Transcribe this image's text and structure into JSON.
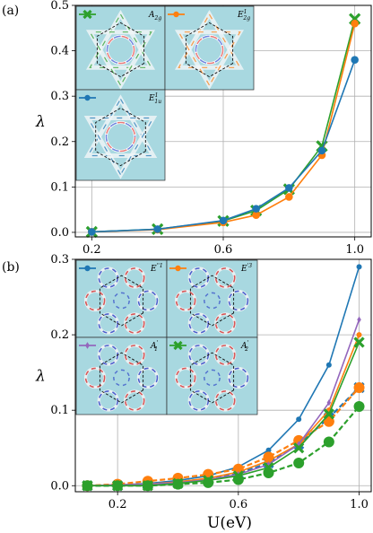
{
  "panel_labels": [
    "(a)",
    "(b)"
  ],
  "xlabel": "U(eV)",
  "chart_data": [
    {
      "type": "line",
      "panel": "(a)",
      "ylabel": "λ",
      "xlim": [
        0.15,
        1.05
      ],
      "ylim": [
        -0.01,
        0.5
      ],
      "xticks": [
        "0.2",
        "0.6",
        "1.0"
      ],
      "xtick_values": [
        0.2,
        0.6,
        1.0
      ],
      "yticks": [
        "0.0",
        "0.1",
        "0.2",
        "0.3",
        "0.4",
        "0.5"
      ],
      "ytick_values": [
        0.0,
        0.1,
        0.2,
        0.3,
        0.4,
        0.5
      ],
      "grid": true,
      "series": [
        {
          "name": "A2g",
          "label_main": "A",
          "label_sub": "2g",
          "label_sup": "",
          "color": "#2ca02c",
          "marker": "x",
          "dashed": false,
          "x": [
            0.2,
            0.4,
            0.6,
            0.7,
            0.8,
            0.9,
            1.0
          ],
          "y": [
            0.001,
            0.007,
            0.025,
            0.048,
            0.095,
            0.19,
            0.47
          ]
        },
        {
          "name": "E12g",
          "label_main": "E",
          "label_sub": "2g",
          "label_sup": "1",
          "color": "#ff7f0e",
          "marker": "o",
          "dashed": false,
          "x": [
            0.2,
            0.4,
            0.6,
            0.7,
            0.8,
            0.9,
            1.0
          ],
          "y": [
            0.001,
            0.006,
            0.022,
            0.038,
            0.078,
            0.17,
            0.46
          ]
        },
        {
          "name": "E11u",
          "label_main": "E",
          "label_sub": "1u",
          "label_sup": "1",
          "color": "#1f77b4",
          "marker": "o",
          "dashed": false,
          "x": [
            0.2,
            0.4,
            0.6,
            0.7,
            0.8,
            0.9,
            1.0
          ],
          "y": [
            0.001,
            0.007,
            0.026,
            0.052,
            0.098,
            0.18,
            0.38
          ]
        }
      ]
    },
    {
      "type": "line",
      "panel": "(b)",
      "ylabel": "λ",
      "xlim": [
        0.06,
        1.04
      ],
      "ylim": [
        -0.008,
        0.3
      ],
      "xticks": [
        "0.2",
        "0.6",
        "1.0"
      ],
      "xtick_values": [
        0.2,
        0.6,
        1.0
      ],
      "yticks": [
        "0.0",
        "0.1",
        "0.2",
        "0.3"
      ],
      "ytick_values": [
        0.0,
        0.1,
        0.2,
        0.3
      ],
      "grid": true,
      "series": [
        {
          "name": "E'' solid",
          "label_main": "E",
          "label_sub": "",
          "label_sup": "''1",
          "color": "#1f77b4",
          "marker": "o",
          "dashed": false,
          "x": [
            0.1,
            0.2,
            0.3,
            0.4,
            0.5,
            0.6,
            0.7,
            0.8,
            0.9,
            1.0
          ],
          "y": [
            0.0,
            0.001,
            0.003,
            0.007,
            0.013,
            0.025,
            0.047,
            0.088,
            0.16,
            0.29
          ]
        },
        {
          "name": "E'' dashed",
          "label_main": "",
          "label_sub": "",
          "label_sup": "",
          "color": "#1f77b4",
          "marker": "x",
          "dashed": true,
          "x": [
            0.1,
            0.2,
            0.3,
            0.4,
            0.5,
            0.6,
            0.7,
            0.8,
            0.9,
            1.0
          ],
          "y": [
            0.0,
            0.0,
            0.002,
            0.005,
            0.009,
            0.016,
            0.03,
            0.055,
            0.09,
            0.13
          ]
        },
        {
          "name": "E'3 solid",
          "label_main": "E",
          "label_sub": "",
          "label_sup": "'3",
          "color": "#ff7f0e",
          "marker": "o",
          "dashed": false,
          "x": [
            0.1,
            0.2,
            0.3,
            0.4,
            0.5,
            0.6,
            0.7,
            0.8,
            0.9,
            1.0
          ],
          "y": [
            0.0,
            0.001,
            0.002,
            0.005,
            0.01,
            0.018,
            0.033,
            0.055,
            0.1,
            0.2
          ]
        },
        {
          "name": "E'3 dashed",
          "label_main": "",
          "label_sub": "",
          "label_sup": "",
          "color": "#ff7f0e",
          "marker": "o",
          "dashed": true,
          "x": [
            0.1,
            0.2,
            0.3,
            0.4,
            0.5,
            0.6,
            0.7,
            0.8,
            0.9,
            1.0
          ],
          "y": [
            0.0,
            0.002,
            0.006,
            0.01,
            0.015,
            0.022,
            0.038,
            0.06,
            0.085,
            0.13
          ]
        },
        {
          "name": "A'1",
          "label_main": "A",
          "label_sub": "1",
          "label_sup": "'",
          "color": "#9467bd",
          "marker": "d",
          "dashed": false,
          "x": [
            0.1,
            0.2,
            0.3,
            0.4,
            0.5,
            0.6,
            0.7,
            0.8,
            0.9,
            1.0
          ],
          "y": [
            0.0,
            0.001,
            0.002,
            0.004,
            0.008,
            0.015,
            0.028,
            0.055,
            0.11,
            0.22
          ]
        },
        {
          "name": "A'2 solid",
          "label_main": "A",
          "label_sub": "2",
          "label_sup": "'",
          "color": "#2ca02c",
          "marker": "x",
          "dashed": false,
          "x": [
            0.1,
            0.2,
            0.3,
            0.4,
            0.5,
            0.6,
            0.7,
            0.8,
            0.9,
            1.0
          ],
          "y": [
            0.0,
            0.0,
            0.0,
            0.003,
            0.007,
            0.013,
            0.024,
            0.05,
            0.095,
            0.19
          ]
        },
        {
          "name": "A'2 dashed",
          "label_main": "",
          "label_sub": "",
          "label_sup": "",
          "color": "#2ca02c",
          "marker": "o",
          "dashed": true,
          "x": [
            0.1,
            0.2,
            0.3,
            0.4,
            0.5,
            0.6,
            0.7,
            0.8,
            0.9,
            1.0
          ],
          "y": [
            0.0,
            0.0,
            0.0,
            0.002,
            0.004,
            0.008,
            0.017,
            0.03,
            0.058,
            0.105
          ]
        }
      ]
    }
  ]
}
